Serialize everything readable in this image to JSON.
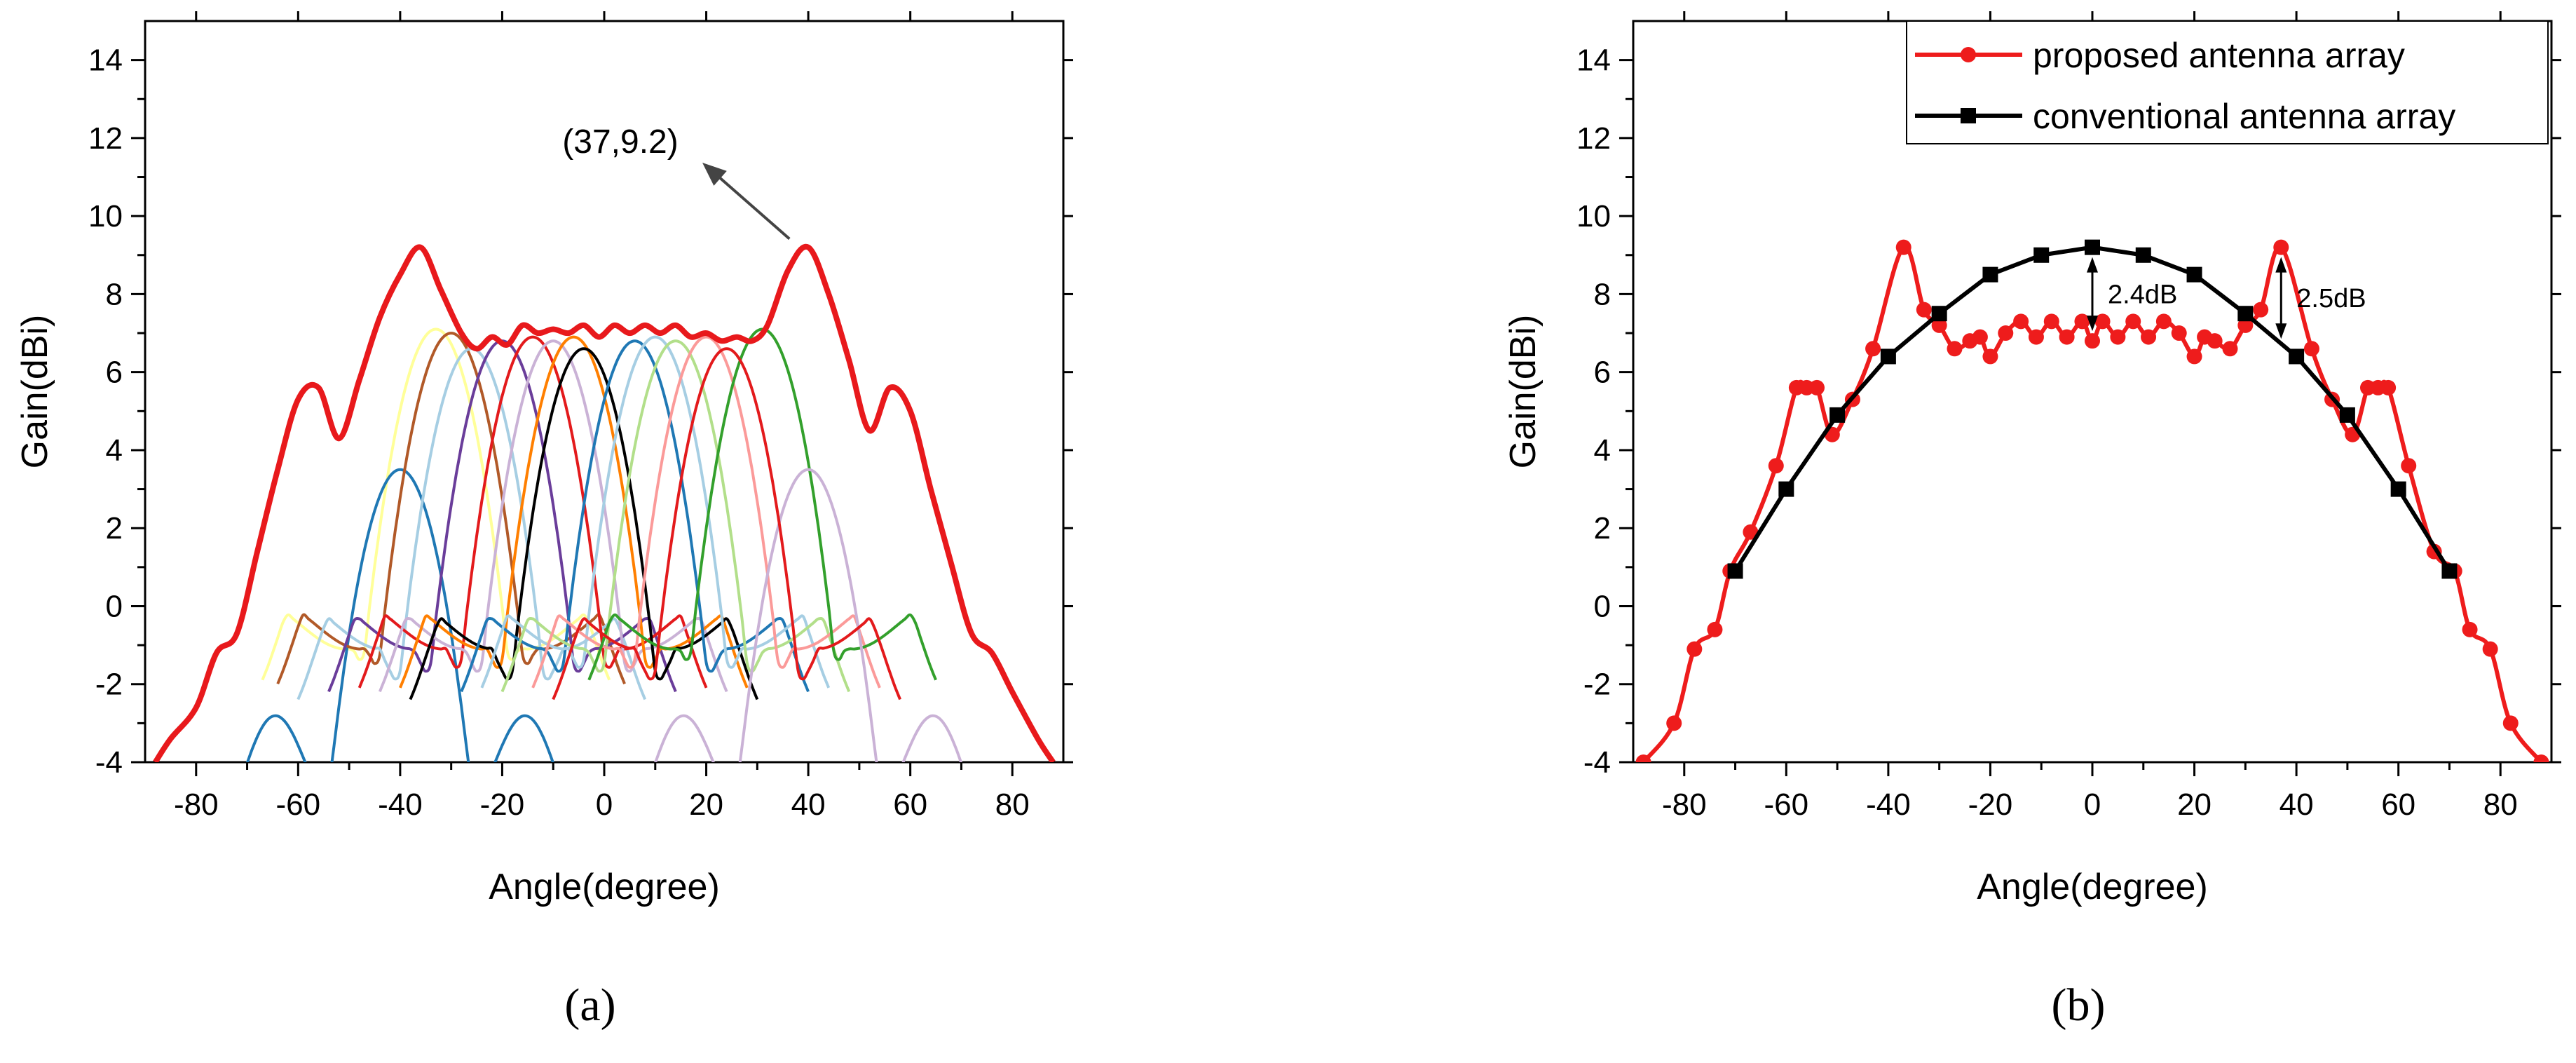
{
  "chart_data": [
    {
      "panel": "(a)",
      "type": "line",
      "xlabel": "Angle(degree)",
      "ylabel": "Gain(dBi)",
      "xlim": [
        -90,
        90
      ],
      "ylim": [
        -4,
        15
      ],
      "xticks": [
        -80,
        -60,
        -40,
        -20,
        0,
        20,
        40,
        60,
        80
      ],
      "yticks": [
        -4,
        -2,
        0,
        2,
        4,
        6,
        8,
        10,
        12,
        14
      ],
      "grid": false,
      "legend": "none",
      "annotation": {
        "text": "(37,9.2)",
        "x": 37,
        "y": 9.2
      },
      "envelope": {
        "color": "#e8191c",
        "x": [
          -88,
          -85,
          -80,
          -76,
          -72,
          -68,
          -64,
          -60,
          -56,
          -52,
          -48,
          -44,
          -40,
          -36,
          -32,
          -28,
          -25,
          -22,
          -19,
          -16,
          -13,
          -10,
          -7,
          -4,
          -1,
          2,
          5,
          8,
          11,
          14,
          17,
          20,
          23,
          26,
          29,
          32,
          36,
          40,
          44,
          48,
          52,
          56,
          60,
          64,
          68,
          72,
          76,
          80,
          85,
          88
        ],
        "y": [
          -4,
          -3.4,
          -2.6,
          -1.2,
          -0.7,
          1.4,
          3.5,
          5.3,
          5.6,
          4.3,
          5.8,
          7.4,
          8.5,
          9.2,
          8.1,
          7.0,
          6.6,
          6.9,
          6.7,
          7.2,
          7.0,
          7.1,
          7.0,
          7.2,
          6.9,
          7.2,
          7.0,
          7.2,
          7.0,
          7.2,
          6.9,
          7.0,
          6.8,
          6.9,
          6.8,
          7.2,
          8.6,
          9.2,
          8.0,
          6.3,
          4.5,
          5.6,
          5.0,
          3.0,
          1.1,
          -0.7,
          -1.2,
          -2.2,
          -3.4,
          -4
        ]
      },
      "beams": [
        {
          "color": "#ffff99",
          "center": -33,
          "peak": 7.1
        },
        {
          "color": "#1f78b4",
          "center": -40,
          "peak": 3.5
        },
        {
          "color": "#b15928",
          "center": -30,
          "peak": 7.0
        },
        {
          "color": "#a6cee3",
          "center": -26,
          "peak": 6.6
        },
        {
          "color": "#6a3d9a",
          "center": -20,
          "peak": 6.8
        },
        {
          "color": "#e31a1c",
          "center": -14,
          "peak": 6.9
        },
        {
          "color": "#cab2d6",
          "center": -10,
          "peak": 6.8
        },
        {
          "color": "#ff7f00",
          "center": -6,
          "peak": 6.9
        },
        {
          "color": "#000000",
          "center": -4,
          "peak": 6.6
        },
        {
          "color": "#1f78b4",
          "center": 6,
          "peak": 6.8
        },
        {
          "color": "#a6cee3",
          "center": 10,
          "peak": 6.9
        },
        {
          "color": "#b2df8a",
          "center": 14,
          "peak": 6.8
        },
        {
          "color": "#fb9a99",
          "center": 20,
          "peak": 6.9
        },
        {
          "color": "#33a02c",
          "center": 31,
          "peak": 7.1
        },
        {
          "color": "#cab2d6",
          "center": 40,
          "peak": 3.5
        },
        {
          "color": "#e31a1c",
          "center": 24,
          "peak": 6.6
        }
      ]
    },
    {
      "panel": "(b)",
      "type": "line",
      "xlabel": "Angle(degree)",
      "ylabel": "Gain(dBi)",
      "xlim": [
        -90,
        90
      ],
      "ylim": [
        -4,
        15
      ],
      "xticks": [
        -80,
        -60,
        -40,
        -20,
        0,
        20,
        40,
        60,
        80
      ],
      "yticks": [
        -4,
        -2,
        0,
        2,
        4,
        6,
        8,
        10,
        12,
        14
      ],
      "grid": false,
      "legend": "top-right",
      "series": [
        {
          "name": "proposed antenna array",
          "color": "#ee1c1c",
          "marker": "circle",
          "x": [
            -88,
            -82,
            -78,
            -74,
            -71,
            -67,
            -62,
            -58,
            -56,
            -54,
            -51,
            -47,
            -43,
            -37,
            -33,
            -30,
            -27,
            -24,
            -22,
            -20,
            -17,
            -14,
            -11,
            -8,
            -5,
            -2,
            0,
            2,
            5,
            8,
            11,
            14,
            17,
            20,
            22,
            24,
            27,
            30,
            33,
            37,
            43,
            47,
            51,
            54,
            56,
            58,
            62,
            67,
            71,
            74,
            78,
            82,
            88
          ],
          "y": [
            -4,
            -3.0,
            -1.1,
            -0.6,
            0.9,
            1.9,
            3.6,
            5.6,
            5.6,
            5.6,
            4.4,
            5.3,
            6.6,
            9.2,
            7.6,
            7.2,
            6.6,
            6.8,
            6.9,
            6.4,
            7.0,
            7.3,
            6.9,
            7.3,
            6.9,
            7.3,
            6.8,
            7.3,
            6.9,
            7.3,
            6.9,
            7.3,
            7.0,
            6.4,
            6.9,
            6.8,
            6.6,
            7.2,
            7.6,
            9.2,
            6.6,
            5.3,
            4.4,
            5.6,
            5.6,
            5.6,
            3.6,
            1.4,
            0.9,
            -0.6,
            -1.1,
            -3.0,
            -4
          ]
        },
        {
          "name": "conventional antenna array",
          "color": "#000000",
          "marker": "square",
          "x": [
            -70,
            -60,
            -50,
            -40,
            -30,
            -20,
            -10,
            0,
            10,
            20,
            30,
            40,
            50,
            60,
            70
          ],
          "y": [
            0.9,
            3.0,
            4.9,
            6.4,
            7.5,
            8.5,
            9.0,
            9.2,
            9.0,
            8.5,
            7.5,
            6.4,
            4.9,
            3.0,
            0.9
          ]
        }
      ],
      "annotations": [
        {
          "text": "2.4dB",
          "x": 0,
          "y_from": 6.8,
          "y_to": 9.2
        },
        {
          "text": "2.5dB",
          "x": 37,
          "y_from": 6.6,
          "y_to": 9.2
        }
      ]
    }
  ]
}
